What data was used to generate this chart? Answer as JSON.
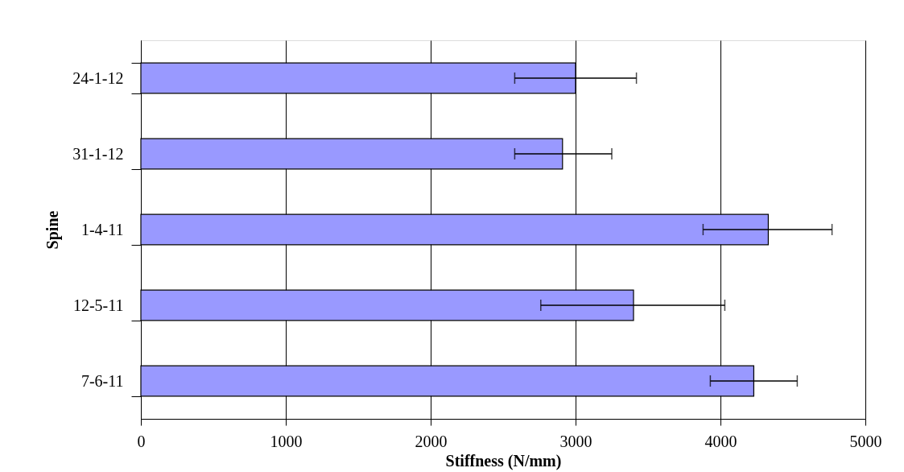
{
  "chart_data": {
    "type": "bar",
    "orientation": "horizontal",
    "xlabel": "Stiffness (N/mm)",
    "ylabel": "Spine",
    "categories": [
      "24-1-12",
      "31-1-12",
      "1-4-11",
      "12-5-11",
      "7-6-11"
    ],
    "series": [
      {
        "color": "#9999ff",
        "values": [
          3000,
          2910,
          4330,
          3400,
          4230
        ],
        "errors": [
          [
            2580,
            3420
          ],
          [
            2580,
            3250
          ],
          [
            3880,
            4770
          ],
          [
            2760,
            4030
          ],
          [
            3930,
            4530
          ]
        ]
      }
    ],
    "xlim": [
      0,
      5000
    ],
    "xticks": [
      0,
      1000,
      2000,
      3000,
      4000,
      5000
    ],
    "grid": "x"
  }
}
